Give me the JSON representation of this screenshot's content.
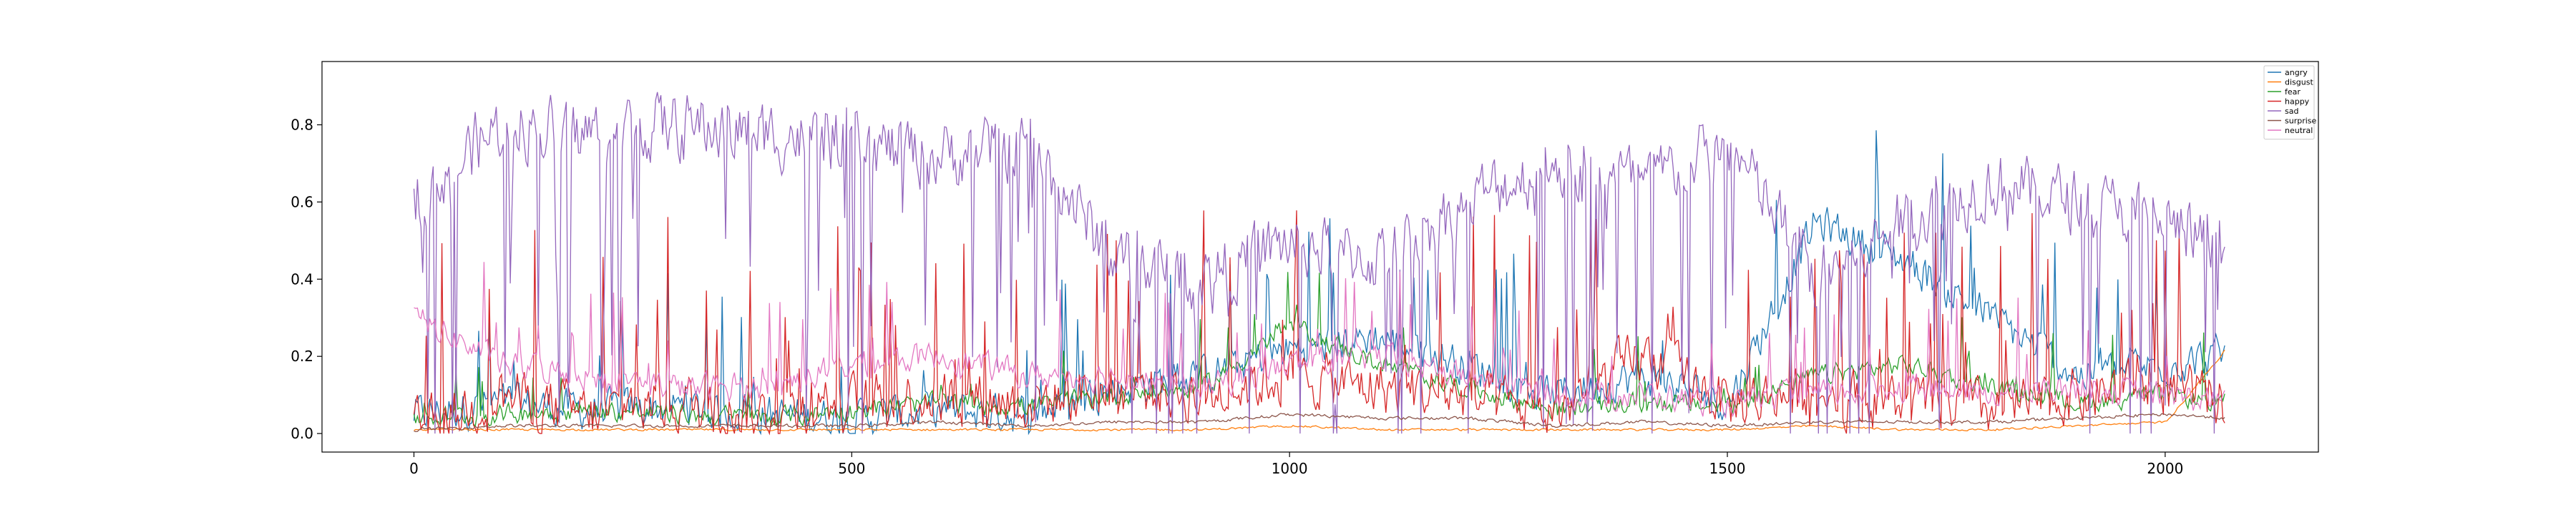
{
  "chart_data": {
    "type": "line",
    "title": "",
    "xlabel": "",
    "ylabel": "",
    "xlim": [
      -105,
      2175
    ],
    "ylim": [
      -0.048,
      0.964
    ],
    "xticks": [
      0,
      500,
      1000,
      1500,
      2000
    ],
    "xtick_labels": [
      "0",
      "500",
      "1000",
      "1500",
      "2000"
    ],
    "yticks": [
      0.0,
      0.2,
      0.4,
      0.6,
      0.8
    ],
    "ytick_labels": [
      "0.0",
      "0.2",
      "0.4",
      "0.6",
      "0.8"
    ],
    "n_points": 2070,
    "grid": false,
    "legend_position": "top-right",
    "series": [
      {
        "name": "angry",
        "color": "#1f77b4",
        "x": [
          0,
          100,
          200,
          300,
          400,
          500,
          600,
          700,
          800,
          900,
          1000,
          1100,
          1200,
          1300,
          1400,
          1500,
          1600,
          1700,
          1800,
          1900,
          2000,
          2069
        ],
        "values": [
          0.05,
          0.08,
          0.06,
          0.07,
          0.05,
          0.04,
          0.06,
          0.05,
          0.12,
          0.15,
          0.22,
          0.25,
          0.18,
          0.1,
          0.15,
          0.08,
          0.55,
          0.45,
          0.3,
          0.15,
          0.18,
          0.2
        ]
      },
      {
        "name": "disgust",
        "color": "#ff7f0e",
        "x": [
          0,
          100,
          200,
          300,
          400,
          500,
          600,
          700,
          800,
          900,
          1000,
          1100,
          1200,
          1300,
          1400,
          1500,
          1600,
          1700,
          1800,
          1900,
          2000,
          2069
        ],
        "values": [
          0.01,
          0.01,
          0.01,
          0.01,
          0.01,
          0.01,
          0.01,
          0.01,
          0.01,
          0.01,
          0.02,
          0.01,
          0.01,
          0.01,
          0.01,
          0.01,
          0.02,
          0.01,
          0.01,
          0.02,
          0.03,
          0.22
        ]
      },
      {
        "name": "fear",
        "color": "#2ca02c",
        "x": [
          0,
          100,
          200,
          300,
          400,
          500,
          600,
          700,
          800,
          900,
          1000,
          1100,
          1200,
          1300,
          1400,
          1500,
          1600,
          1700,
          1800,
          1900,
          2000,
          2069
        ],
        "values": [
          0.04,
          0.05,
          0.06,
          0.05,
          0.04,
          0.06,
          0.08,
          0.07,
          0.1,
          0.12,
          0.28,
          0.18,
          0.12,
          0.06,
          0.08,
          0.07,
          0.15,
          0.18,
          0.12,
          0.08,
          0.1,
          0.08
        ]
      },
      {
        "name": "happy",
        "color": "#d62728",
        "x": [
          0,
          100,
          200,
          300,
          400,
          500,
          600,
          700,
          800,
          900,
          1000,
          1100,
          1200,
          1300,
          1400,
          1500,
          1600,
          1700,
          1800,
          1900,
          2000,
          2069
        ],
        "values": [
          0.01,
          0.1,
          0.05,
          0.08,
          0.05,
          0.08,
          0.1,
          0.08,
          0.12,
          0.1,
          0.15,
          0.12,
          0.1,
          0.05,
          0.2,
          0.08,
          0.1,
          0.08,
          0.06,
          0.1,
          0.12,
          0.08
        ]
      },
      {
        "name": "sad",
        "color": "#9467bd",
        "x": [
          0,
          100,
          200,
          300,
          400,
          500,
          600,
          700,
          800,
          900,
          1000,
          1100,
          1200,
          1300,
          1400,
          1500,
          1600,
          1700,
          1800,
          1900,
          2000,
          2069
        ],
        "values": [
          0.62,
          0.8,
          0.78,
          0.8,
          0.78,
          0.75,
          0.72,
          0.75,
          0.45,
          0.4,
          0.5,
          0.45,
          0.6,
          0.7,
          0.65,
          0.75,
          0.4,
          0.55,
          0.65,
          0.6,
          0.55,
          0.45
        ]
      },
      {
        "name": "surprise",
        "color": "#8c564b",
        "x": [
          0,
          100,
          200,
          300,
          400,
          500,
          600,
          700,
          800,
          900,
          1000,
          1100,
          1200,
          1300,
          1400,
          1500,
          1600,
          1700,
          1800,
          1900,
          2000,
          2069
        ],
        "values": [
          0.01,
          0.02,
          0.02,
          0.02,
          0.02,
          0.02,
          0.03,
          0.02,
          0.03,
          0.03,
          0.05,
          0.04,
          0.04,
          0.02,
          0.03,
          0.02,
          0.03,
          0.03,
          0.03,
          0.04,
          0.05,
          0.04
        ]
      },
      {
        "name": "neutral",
        "color": "#e377c2",
        "x": [
          0,
          100,
          200,
          300,
          400,
          500,
          600,
          700,
          800,
          900,
          1000,
          1100,
          1200,
          1300,
          1400,
          1500,
          1600,
          1700,
          1800,
          1900,
          2000,
          2069
        ],
        "values": [
          0.3,
          0.18,
          0.15,
          0.12,
          0.12,
          0.18,
          0.2,
          0.15,
          0.15,
          0.12,
          0.18,
          0.2,
          0.15,
          0.1,
          0.1,
          0.08,
          0.1,
          0.12,
          0.1,
          0.12,
          0.1,
          0.08
        ]
      }
    ]
  }
}
